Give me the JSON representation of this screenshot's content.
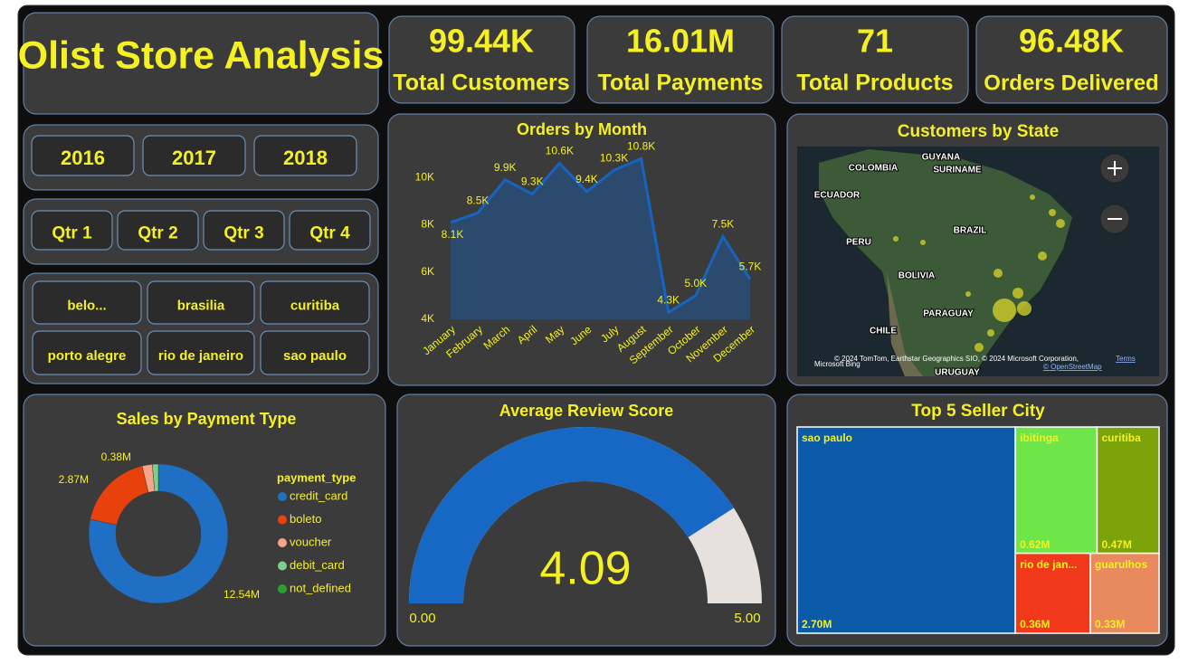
{
  "header": {
    "title": "Olist Store Analysis"
  },
  "kpis": [
    {
      "value": "99.44K",
      "label": "Total Customers"
    },
    {
      "value": "16.01M",
      "label": "Total Payments"
    },
    {
      "value": "71",
      "label": "Total Products"
    },
    {
      "value": "96.48K",
      "label": "Orders Delivered"
    }
  ],
  "slicers": {
    "years": [
      "2016",
      "2017",
      "2018"
    ],
    "quarters": [
      "Qtr 1",
      "Qtr 2",
      "Qtr 3",
      "Qtr 4"
    ],
    "cities": [
      "belo...",
      "brasilia",
      "curitiba",
      "porto alegre",
      "rio de janeiro",
      "sao paulo"
    ]
  },
  "map": {
    "title": "Customers by State",
    "labels": [
      "COLOMBIA",
      "GUYANA",
      "SURINAME",
      "ECUADOR",
      "BRAZIL",
      "PERU",
      "BOLIVIA",
      "PARAGUAY",
      "CHILE",
      "URUGUAY"
    ],
    "bing": "Microsoft Bing",
    "attribution": "© 2024 TomTom, Earthstar Geographics SIO, © 2024 Microsoft Corporation,",
    "terms": "Terms",
    "osm": "© OpenStreetMap"
  },
  "chart_data": [
    {
      "type": "area",
      "title": "Orders by Month",
      "categories": [
        "January",
        "February",
        "March",
        "April",
        "May",
        "June",
        "July",
        "August",
        "September",
        "October",
        "November",
        "December"
      ],
      "values": [
        8.1,
        8.5,
        9.9,
        9.3,
        10.6,
        9.4,
        10.3,
        10.8,
        4.3,
        5.0,
        7.5,
        5.7
      ],
      "value_labels": [
        "8.1K",
        "8.5K",
        "9.9K",
        "9.3K",
        "10.6K",
        "9.4K",
        "10.3K",
        "10.8K",
        "4.3K",
        "5.0K",
        "7.5K",
        "5.7K"
      ],
      "ylim": [
        4,
        11
      ],
      "yticks": [
        {
          "value": 4,
          "label": "4K"
        },
        {
          "value": 6,
          "label": "6K"
        },
        {
          "value": 8,
          "label": "8K"
        },
        {
          "value": 10,
          "label": "10K"
        }
      ],
      "color": "#1565c0",
      "fill": "#2c4a6e"
    },
    {
      "type": "donut",
      "title": "Sales by Payment Type",
      "legend_title": "payment_type",
      "categories": [
        "credit_card",
        "boleto",
        "voucher",
        "debit_card",
        "not_defined"
      ],
      "values": [
        12.54,
        2.87,
        0.38,
        0.22,
        0
      ],
      "value_labels": [
        "12.54M",
        "2.87M",
        "0.38M",
        null,
        null
      ],
      "colors": [
        "#1f6fc5",
        "#e8410c",
        "#f4a58a",
        "#7ccf8c",
        "#2ca02c"
      ]
    },
    {
      "type": "gauge",
      "title": "Average Review Score",
      "value": 4.09,
      "range": [
        {
          "value": 0,
          "label": "0.00"
        },
        {
          "value": 5,
          "label": "5.00"
        }
      ],
      "color": "#1668c4",
      "track": "#e6e1dc"
    },
    {
      "type": "treemap",
      "title": "Top 5 Seller City",
      "categories": [
        "sao paulo",
        "ibitinga",
        "curitiba",
        "rio de jan...",
        "guarulhos"
      ],
      "values": [
        2.7,
        0.62,
        0.47,
        0.36,
        0.33
      ],
      "value_labels": [
        "2.70M",
        "0.62M",
        "0.47M",
        "0.36M",
        "0.33M"
      ],
      "colors": [
        "#0a5aa8",
        "#6ee64a",
        "#7ca30a",
        "#f2381a",
        "#e88a5e"
      ]
    }
  ]
}
